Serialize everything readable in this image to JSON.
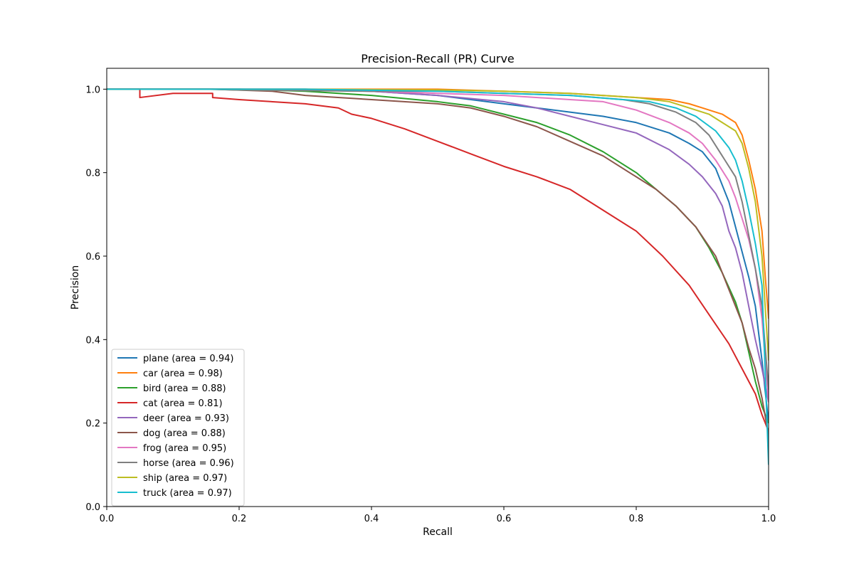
{
  "chart_data": {
    "type": "line",
    "title": "Precision-Recall (PR) Curve",
    "xlabel": "Recall",
    "ylabel": "Precision",
    "xlim": [
      0.0,
      1.0
    ],
    "ylim": [
      0.0,
      1.05
    ],
    "xticks": [
      0.0,
      0.2,
      0.4,
      0.6,
      0.8,
      1.0
    ],
    "yticks": [
      0.0,
      0.2,
      0.4,
      0.6,
      0.8,
      1.0
    ],
    "xtick_labels": [
      "0.0",
      "0.2",
      "0.4",
      "0.6",
      "0.8",
      "1.0"
    ],
    "ytick_labels": [
      "0.0",
      "0.2",
      "0.4",
      "0.6",
      "0.8",
      "1.0"
    ],
    "grid": false,
    "legend_position": "lower-left",
    "series": [
      {
        "name": "plane (area = 0.94)",
        "color": "#1f77b4",
        "points": [
          [
            0.0,
            1.0
          ],
          [
            0.2,
            1.0
          ],
          [
            0.4,
            0.995
          ],
          [
            0.5,
            0.985
          ],
          [
            0.6,
            0.965
          ],
          [
            0.65,
            0.955
          ],
          [
            0.7,
            0.945
          ],
          [
            0.75,
            0.935
          ],
          [
            0.8,
            0.92
          ],
          [
            0.85,
            0.895
          ],
          [
            0.88,
            0.87
          ],
          [
            0.9,
            0.85
          ],
          [
            0.92,
            0.81
          ],
          [
            0.93,
            0.77
          ],
          [
            0.94,
            0.73
          ],
          [
            0.95,
            0.67
          ],
          [
            0.96,
            0.61
          ],
          [
            0.97,
            0.55
          ],
          [
            0.98,
            0.48
          ],
          [
            0.99,
            0.35
          ],
          [
            1.0,
            0.2
          ]
        ]
      },
      {
        "name": "car (area = 0.98)",
        "color": "#ff7f0e",
        "points": [
          [
            0.0,
            1.0
          ],
          [
            0.3,
            1.0
          ],
          [
            0.5,
            1.0
          ],
          [
            0.6,
            0.995
          ],
          [
            0.7,
            0.99
          ],
          [
            0.8,
            0.98
          ],
          [
            0.85,
            0.975
          ],
          [
            0.88,
            0.965
          ],
          [
            0.9,
            0.955
          ],
          [
            0.93,
            0.94
          ],
          [
            0.95,
            0.92
          ],
          [
            0.96,
            0.89
          ],
          [
            0.97,
            0.83
          ],
          [
            0.98,
            0.76
          ],
          [
            0.99,
            0.66
          ],
          [
            0.995,
            0.55
          ],
          [
            1.0,
            0.45
          ]
        ]
      },
      {
        "name": "bird (area = 0.88)",
        "color": "#2ca02c",
        "points": [
          [
            0.0,
            1.0
          ],
          [
            0.2,
            1.0
          ],
          [
            0.3,
            0.995
          ],
          [
            0.4,
            0.985
          ],
          [
            0.5,
            0.97
          ],
          [
            0.55,
            0.96
          ],
          [
            0.6,
            0.94
          ],
          [
            0.65,
            0.92
          ],
          [
            0.7,
            0.89
          ],
          [
            0.75,
            0.85
          ],
          [
            0.8,
            0.8
          ],
          [
            0.83,
            0.76
          ],
          [
            0.86,
            0.72
          ],
          [
            0.89,
            0.67
          ],
          [
            0.91,
            0.62
          ],
          [
            0.93,
            0.56
          ],
          [
            0.95,
            0.49
          ],
          [
            0.96,
            0.44
          ],
          [
            0.97,
            0.37
          ],
          [
            0.98,
            0.3
          ],
          [
            0.99,
            0.24
          ],
          [
            1.0,
            0.2
          ]
        ]
      },
      {
        "name": "cat (area = 0.81)",
        "color": "#d62728",
        "points": [
          [
            0.0,
            1.0
          ],
          [
            0.05,
            1.0
          ],
          [
            0.05,
            0.98
          ],
          [
            0.1,
            0.99
          ],
          [
            0.16,
            0.99
          ],
          [
            0.16,
            0.98
          ],
          [
            0.2,
            0.975
          ],
          [
            0.3,
            0.965
          ],
          [
            0.35,
            0.955
          ],
          [
            0.37,
            0.94
          ],
          [
            0.4,
            0.93
          ],
          [
            0.45,
            0.905
          ],
          [
            0.5,
            0.875
          ],
          [
            0.55,
            0.845
          ],
          [
            0.6,
            0.815
          ],
          [
            0.65,
            0.79
          ],
          [
            0.7,
            0.76
          ],
          [
            0.75,
            0.71
          ],
          [
            0.8,
            0.66
          ],
          [
            0.84,
            0.6
          ],
          [
            0.88,
            0.53
          ],
          [
            0.91,
            0.46
          ],
          [
            0.94,
            0.39
          ],
          [
            0.96,
            0.33
          ],
          [
            0.98,
            0.27
          ],
          [
            0.99,
            0.22
          ],
          [
            1.0,
            0.18
          ]
        ]
      },
      {
        "name": "deer (area = 0.93)",
        "color": "#9467bd",
        "points": [
          [
            0.0,
            1.0
          ],
          [
            0.3,
            1.0
          ],
          [
            0.4,
            0.995
          ],
          [
            0.5,
            0.985
          ],
          [
            0.6,
            0.97
          ],
          [
            0.65,
            0.955
          ],
          [
            0.7,
            0.935
          ],
          [
            0.75,
            0.915
          ],
          [
            0.8,
            0.895
          ],
          [
            0.85,
            0.855
          ],
          [
            0.88,
            0.82
          ],
          [
            0.9,
            0.79
          ],
          [
            0.92,
            0.75
          ],
          [
            0.93,
            0.72
          ],
          [
            0.94,
            0.66
          ],
          [
            0.95,
            0.62
          ],
          [
            0.96,
            0.56
          ],
          [
            0.97,
            0.48
          ],
          [
            0.98,
            0.4
          ],
          [
            0.99,
            0.33
          ],
          [
            1.0,
            0.25
          ]
        ]
      },
      {
        "name": "dog (area = 0.88)",
        "color": "#8c564b",
        "points": [
          [
            0.0,
            1.0
          ],
          [
            0.16,
            1.0
          ],
          [
            0.25,
            0.995
          ],
          [
            0.3,
            0.985
          ],
          [
            0.4,
            0.975
          ],
          [
            0.5,
            0.965
          ],
          [
            0.55,
            0.955
          ],
          [
            0.6,
            0.935
          ],
          [
            0.65,
            0.91
          ],
          [
            0.7,
            0.875
          ],
          [
            0.75,
            0.84
          ],
          [
            0.8,
            0.79
          ],
          [
            0.83,
            0.76
          ],
          [
            0.86,
            0.72
          ],
          [
            0.89,
            0.67
          ],
          [
            0.92,
            0.6
          ],
          [
            0.94,
            0.52
          ],
          [
            0.96,
            0.44
          ],
          [
            0.97,
            0.38
          ],
          [
            0.98,
            0.33
          ],
          [
            0.99,
            0.26
          ],
          [
            1.0,
            0.17
          ]
        ]
      },
      {
        "name": "frog (area = 0.95)",
        "color": "#e377c2",
        "points": [
          [
            0.0,
            1.0
          ],
          [
            0.24,
            1.0
          ],
          [
            0.4,
            0.995
          ],
          [
            0.5,
            0.99
          ],
          [
            0.6,
            0.985
          ],
          [
            0.7,
            0.975
          ],
          [
            0.75,
            0.97
          ],
          [
            0.8,
            0.95
          ],
          [
            0.85,
            0.92
          ],
          [
            0.88,
            0.895
          ],
          [
            0.9,
            0.87
          ],
          [
            0.92,
            0.83
          ],
          [
            0.94,
            0.78
          ],
          [
            0.95,
            0.74
          ],
          [
            0.96,
            0.69
          ],
          [
            0.97,
            0.64
          ],
          [
            0.98,
            0.57
          ],
          [
            0.99,
            0.45
          ],
          [
            1.0,
            0.25
          ]
        ]
      },
      {
        "name": "horse (area = 0.96)",
        "color": "#7f7f7f",
        "points": [
          [
            0.0,
            1.0
          ],
          [
            0.15,
            1.0
          ],
          [
            0.2,
            0.998
          ],
          [
            0.4,
            0.995
          ],
          [
            0.5,
            0.995
          ],
          [
            0.6,
            0.99
          ],
          [
            0.7,
            0.985
          ],
          [
            0.78,
            0.975
          ],
          [
            0.82,
            0.965
          ],
          [
            0.86,
            0.945
          ],
          [
            0.89,
            0.92
          ],
          [
            0.91,
            0.89
          ],
          [
            0.93,
            0.84
          ],
          [
            0.95,
            0.79
          ],
          [
            0.96,
            0.73
          ],
          [
            0.97,
            0.65
          ],
          [
            0.98,
            0.57
          ],
          [
            0.99,
            0.48
          ],
          [
            1.0,
            0.28
          ]
        ]
      },
      {
        "name": "ship (area = 0.97)",
        "color": "#bcbd22",
        "points": [
          [
            0.0,
            1.0
          ],
          [
            0.3,
            1.0
          ],
          [
            0.5,
            0.998
          ],
          [
            0.6,
            0.995
          ],
          [
            0.7,
            0.99
          ],
          [
            0.8,
            0.98
          ],
          [
            0.85,
            0.97
          ],
          [
            0.88,
            0.955
          ],
          [
            0.91,
            0.94
          ],
          [
            0.93,
            0.92
          ],
          [
            0.95,
            0.9
          ],
          [
            0.96,
            0.87
          ],
          [
            0.97,
            0.81
          ],
          [
            0.98,
            0.73
          ],
          [
            0.99,
            0.6
          ],
          [
            1.0,
            0.35
          ]
        ]
      },
      {
        "name": "truck (area = 0.97)",
        "color": "#17becf",
        "points": [
          [
            0.0,
            1.0
          ],
          [
            0.3,
            1.0
          ],
          [
            0.5,
            0.995
          ],
          [
            0.6,
            0.99
          ],
          [
            0.7,
            0.985
          ],
          [
            0.78,
            0.975
          ],
          [
            0.82,
            0.97
          ],
          [
            0.86,
            0.955
          ],
          [
            0.89,
            0.935
          ],
          [
            0.92,
            0.9
          ],
          [
            0.94,
            0.86
          ],
          [
            0.95,
            0.83
          ],
          [
            0.96,
            0.78
          ],
          [
            0.97,
            0.71
          ],
          [
            0.98,
            0.63
          ],
          [
            0.99,
            0.53
          ],
          [
            1.0,
            0.1
          ]
        ]
      }
    ]
  }
}
